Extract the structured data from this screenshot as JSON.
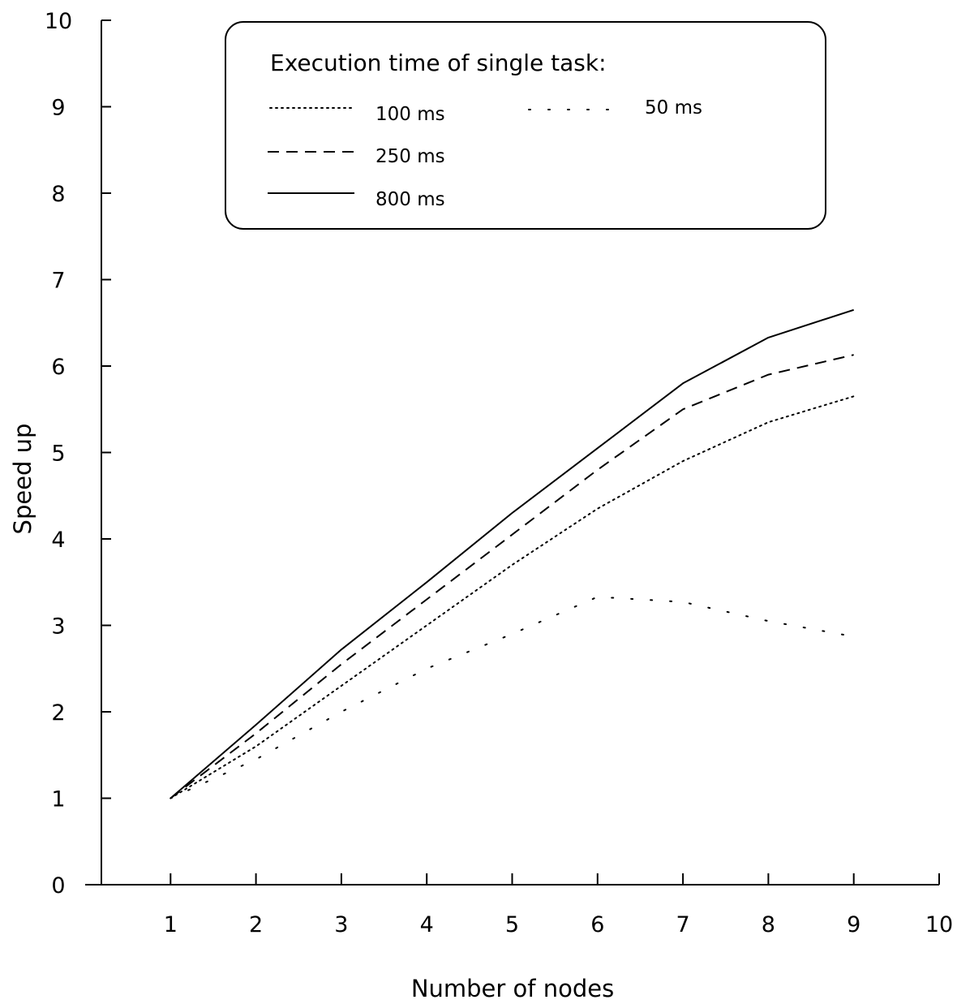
{
  "chart_data": {
    "type": "line",
    "title": "",
    "xlabel": "Number of nodes",
    "ylabel": "Speed up",
    "xlim": [
      0,
      10
    ],
    "ylim": [
      0,
      10
    ],
    "x_ticks": [
      "1",
      "2",
      "3",
      "4",
      "5",
      "6",
      "7",
      "8",
      "9",
      "10"
    ],
    "y_ticks": [
      "0",
      "1",
      "2",
      "3",
      "4",
      "5",
      "6",
      "7",
      "8",
      "9",
      "10"
    ],
    "grid": false,
    "legend": {
      "title": "Execution time of single task:",
      "placement": "top-center"
    },
    "series": [
      {
        "name": "100 ms",
        "style": "dotted",
        "x": [
          1,
          2,
          3,
          4,
          5,
          6,
          7,
          8,
          9
        ],
        "y": [
          1.0,
          1.6,
          2.3,
          3.0,
          3.7,
          4.35,
          4.9,
          5.35,
          5.65
        ]
      },
      {
        "name": "50 ms",
        "style": "sparse-dotted",
        "x": [
          1,
          2,
          3,
          4,
          5,
          6,
          7,
          8,
          9
        ],
        "y": [
          1.0,
          1.45,
          2.0,
          2.5,
          2.9,
          3.33,
          3.27,
          3.05,
          2.87
        ]
      },
      {
        "name": "250 ms",
        "style": "dashed",
        "x": [
          1,
          2,
          3,
          4,
          5,
          6,
          7,
          8,
          9
        ],
        "y": [
          1.0,
          1.75,
          2.55,
          3.3,
          4.05,
          4.8,
          5.5,
          5.9,
          6.13
        ]
      },
      {
        "name": "800 ms",
        "style": "solid",
        "x": [
          1,
          2,
          3,
          4,
          5,
          6,
          7,
          8,
          9
        ],
        "y": [
          1.0,
          1.85,
          2.72,
          3.5,
          4.3,
          5.05,
          5.8,
          6.33,
          6.65
        ]
      }
    ]
  }
}
